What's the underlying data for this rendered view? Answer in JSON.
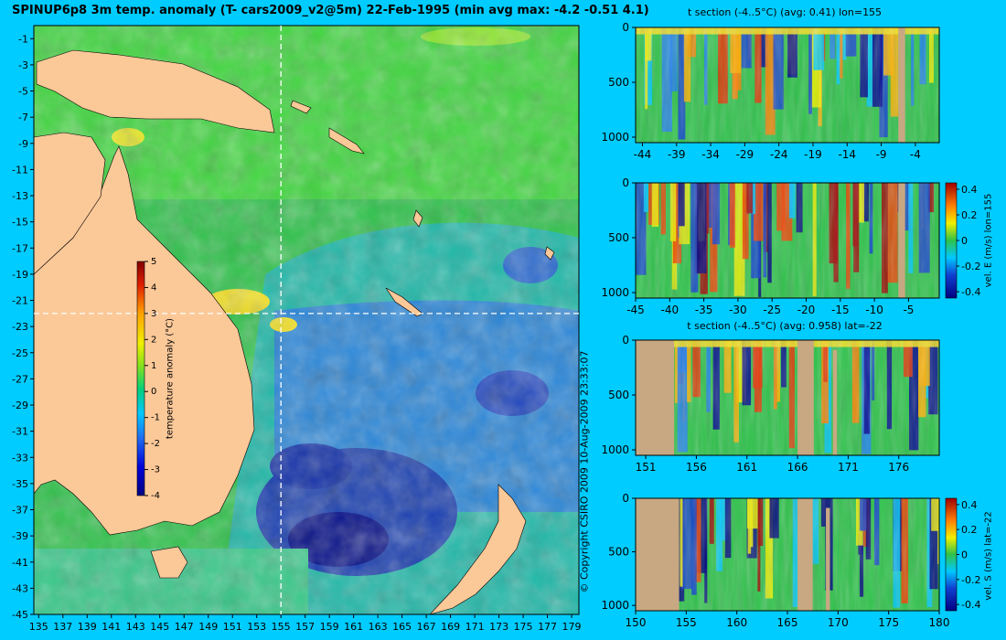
{
  "main_title": "SPINUP6p8 3m temp. anomaly (T- cars2009_v2@5m) 22-Feb-1995 (min avg max: -4.2 -0.51 4.1)",
  "copyright": "© Copyright CSIRO 2009   10-Aug-2009 23:33:07",
  "colors": {
    "background": "#00ccff",
    "land": "#fbc898",
    "section_land": "#c8a882",
    "dashed_line": "#ffffff"
  },
  "chart_data": [
    {
      "id": "map",
      "type": "heatmap",
      "title": "SPINUP6p8 3m temp. anomaly (T- cars2009_v2@5m) 22-Feb-1995 (min avg max: -4.2 -0.51 4.1)",
      "x_ticks": [
        "135",
        "137",
        "139",
        "141",
        "143",
        "145",
        "147",
        "149",
        "151",
        "153",
        "155",
        "157",
        "159",
        "161",
        "163",
        "165",
        "167",
        "169",
        "171",
        "173",
        "175",
        "177",
        "179"
      ],
      "y_ticks": [
        "-1",
        "-3",
        "-5",
        "-7",
        "-9",
        "-11",
        "-13",
        "-15",
        "-17",
        "-19",
        "-21",
        "-23",
        "-25",
        "-27",
        "-29",
        "-31",
        "-33",
        "-35",
        "-37",
        "-39",
        "-41",
        "-43",
        "-45"
      ],
      "xlim": [
        134.6,
        179.6
      ],
      "ylim": [
        -45,
        0
      ],
      "section_lon": 155,
      "section_lat": -22,
      "colorbar": {
        "label": "temperature anomaly (°C)",
        "ticks": [
          "5",
          "4",
          "3",
          "2",
          "1",
          "0",
          "-1",
          "-2",
          "-3",
          "-4"
        ],
        "range": [
          -4,
          5
        ]
      }
    },
    {
      "id": "t-section-lon",
      "type": "heatmap",
      "title": "t section (-4..5°C) (avg: 0.41) lon=155",
      "x_ticks": [
        "-44",
        "-39",
        "-34",
        "-29",
        "-24",
        "-19",
        "-14",
        "-9",
        "-4"
      ],
      "y_ticks": [
        "0",
        "500",
        "1000"
      ],
      "xlim": [
        -45,
        -0.5
      ],
      "ylim": [
        1050,
        0
      ]
    },
    {
      "id": "velocity-east-lon",
      "type": "heatmap",
      "title": "",
      "x_ticks": [
        "-45",
        "-40",
        "-35",
        "-30",
        "-25",
        "-20",
        "-15",
        "-10",
        "-5"
      ],
      "y_ticks": [
        "0",
        "500",
        "1000"
      ],
      "xlim": [
        -45,
        -0.5
      ],
      "ylim": [
        1050,
        0
      ],
      "colorbar": {
        "label": "vel. E (m/s) lon=155",
        "ticks": [
          "0.4",
          "0.2",
          "0",
          "-0.2",
          "-0.4"
        ],
        "range": [
          -0.45,
          0.45
        ]
      }
    },
    {
      "id": "t-section-lat",
      "type": "heatmap",
      "title": "t section (-4..5°C) (avg: 0.958) lat=-22",
      "x_ticks": [
        "151",
        "156",
        "161",
        "166",
        "171",
        "176"
      ],
      "y_ticks": [
        "0",
        "500",
        "1000"
      ],
      "xlim": [
        150,
        180
      ],
      "ylim": [
        1050,
        0
      ]
    },
    {
      "id": "velocity-south-lat",
      "type": "heatmap",
      "title": "",
      "x_ticks": [
        "150",
        "155",
        "160",
        "165",
        "170",
        "175",
        "180"
      ],
      "y_ticks": [
        "0",
        "500",
        "1000"
      ],
      "xlim": [
        150,
        180
      ],
      "ylim": [
        1050,
        0
      ],
      "colorbar": {
        "label": "vel. S (m/s) lat=-22",
        "ticks": [
          "0.4",
          "0.2",
          "0",
          "-0.2",
          "-0.4"
        ],
        "range": [
          -0.45,
          0.45
        ]
      }
    }
  ]
}
